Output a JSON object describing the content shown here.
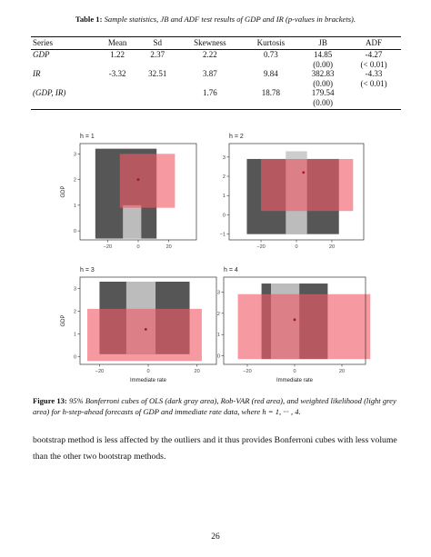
{
  "table": {
    "caption_label": "Table 1:",
    "caption_text": "Sample statistics, JB and ADF test results of GDP and IR (p-values in brackets).",
    "headers": [
      "Series",
      "Mean",
      "Sd",
      "Skewness",
      "Kurtosis",
      "JB",
      "ADF"
    ],
    "rows": [
      {
        "series": "GDP",
        "mean": "1.22",
        "sd": "2.37",
        "skewness": "2.22",
        "kurtosis": "0.73",
        "jb": "14.85",
        "jb_p": "(0.00)",
        "adf": "-4.27",
        "adf_p": "(< 0.01)"
      },
      {
        "series": "IR",
        "mean": "-3.32",
        "sd": "32.51",
        "skewness": "3.87",
        "kurtosis": "9.84",
        "jb": "382.83",
        "jb_p": "(0.00)",
        "adf": "-4.33",
        "adf_p": "(< 0.01)"
      },
      {
        "series": "(GDP, IR)",
        "mean": "",
        "sd": "",
        "skewness": "1.76",
        "kurtosis": "18.78",
        "jb": "179.54",
        "jb_p": "(0.00)",
        "adf": "",
        "adf_p": ""
      }
    ]
  },
  "figure": {
    "caption_label": "Figure 13:",
    "caption_text": "95% Bonferroni cubes of OLS (dark gray area), Rob-VAR (red area), and weighted likelihood (light grey area) for h-step-ahead forecasts of GDP and immediate rate data, where h = 1, ··· , 4.",
    "colors": {
      "ols": "#4d4d4d",
      "robvar": "#f25a66",
      "weighted": "#c8c8c8",
      "point": "#a01828",
      "panel_border": "#333333"
    }
  },
  "chart_data": [
    {
      "type": "area",
      "title": "h = 1",
      "xlabel": "",
      "ylabel": "GDP",
      "x_ticks": [
        "−20",
        "0",
        "20"
      ],
      "y_ticks": [
        "0",
        "1",
        "2",
        "3"
      ],
      "xlim": [
        -38,
        38
      ],
      "ylim": [
        -0.35,
        3.4
      ],
      "ols_box": {
        "x": [
          -28,
          12
        ],
        "y": [
          -0.3,
          3.2
        ]
      },
      "weighted_box": {
        "x": [
          -10,
          2
        ],
        "y": [
          -0.3,
          1.0
        ]
      },
      "robvar_box": {
        "x": [
          -12,
          24
        ],
        "y": [
          0.9,
          3.0
        ]
      },
      "point": {
        "x": 0,
        "y": 2.0
      }
    },
    {
      "type": "area",
      "title": "h = 2",
      "xlabel": "",
      "ylabel": "",
      "x_ticks": [
        "−20",
        "0",
        "20"
      ],
      "y_ticks": [
        "−1",
        "0",
        "1",
        "2",
        "3"
      ],
      "xlim": [
        -38,
        38
      ],
      "ylim": [
        -1.3,
        3.7
      ],
      "ols_box": {
        "x": [
          -28,
          24
        ],
        "y": [
          -1.0,
          2.9
        ]
      },
      "weighted_box": {
        "x": [
          -6,
          6
        ],
        "y": [
          -1.0,
          3.3
        ]
      },
      "robvar_box": {
        "x": [
          -20,
          32
        ],
        "y": [
          0.2,
          2.9
        ]
      },
      "point": {
        "x": 4,
        "y": 2.2
      }
    },
    {
      "type": "area",
      "title": "h = 3",
      "xlabel": "Immediate rate",
      "ylabel": "GDP",
      "x_ticks": [
        "−20",
        "0",
        "20"
      ],
      "y_ticks": [
        "0",
        "1",
        "2",
        "3"
      ],
      "xlim": [
        -28,
        28
      ],
      "ylim": [
        -0.35,
        3.5
      ],
      "ols_box": {
        "x": [
          -20,
          17
        ],
        "y": [
          0.1,
          3.3
        ]
      },
      "weighted_box": {
        "x": [
          -9,
          3
        ],
        "y": [
          0.1,
          3.3
        ]
      },
      "robvar_box": {
        "x": [
          -25,
          22
        ],
        "y": [
          -0.2,
          2.1
        ]
      },
      "point": {
        "x": -1,
        "y": 1.2
      }
    },
    {
      "type": "area",
      "title": "h = 4",
      "xlabel": "Immediate rate",
      "ylabel": "",
      "x_ticks": [
        "−20",
        "0",
        "20"
      ],
      "y_ticks": [
        "0",
        "1",
        "2",
        "3"
      ],
      "xlim": [
        -30,
        30
      ],
      "ylim": [
        -0.4,
        3.7
      ],
      "ols_box": {
        "x": [
          -14,
          14
        ],
        "y": [
          -0.15,
          3.4
        ]
      },
      "weighted_box": {
        "x": [
          -10,
          2
        ],
        "y": [
          -0.15,
          3.4
        ]
      },
      "robvar_box": {
        "x": [
          -24,
          32
        ],
        "y": [
          -0.15,
          2.9
        ]
      },
      "point": {
        "x": 0,
        "y": 1.7
      }
    }
  ],
  "body_text": "bootstrap method is less affected by the outliers and it thus provides Bonferroni cubes with less volume than the other two bootstrap methods.",
  "page_number": "26"
}
